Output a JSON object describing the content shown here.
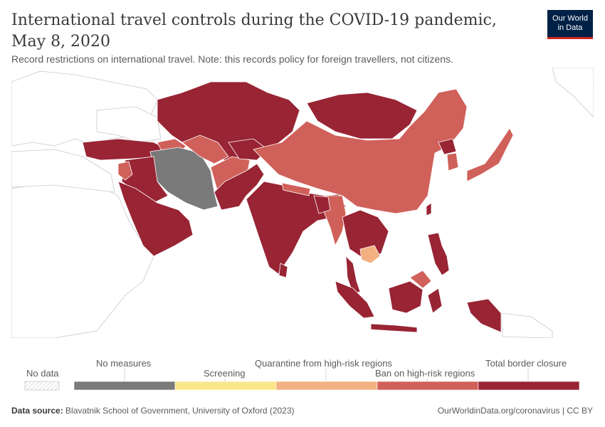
{
  "header": {
    "title": "International travel controls during the COVID-19 pandemic, May 8, 2020",
    "subtitle": "Record restrictions on international travel. Note: this records policy for foreign travellers, not citizens."
  },
  "logo": {
    "line1": "Our World",
    "line2": "in Data"
  },
  "colors": {
    "no_data": "#ffffff",
    "no_measures": "#7a7a7a",
    "screening": "#fbe78a",
    "quarantine": "#f3b081",
    "ban_high_risk": "#d0605a",
    "total_closure": "#982434",
    "water": "#ffffff",
    "border": "#c8c8c8"
  },
  "legend": {
    "no_data_label": "No data",
    "categories": [
      {
        "label": "No measures",
        "color_key": "no_measures"
      },
      {
        "label": "Screening",
        "color_key": "screening"
      },
      {
        "label": "Quarantine from high-risk regions",
        "color_key": "quarantine"
      },
      {
        "label": "Ban on high-risk regions",
        "color_key": "ban_high_risk"
      },
      {
        "label": "Total border closure",
        "color_key": "total_closure"
      }
    ]
  },
  "footer": {
    "source_label": "Data source:",
    "source_text": "Blavatnik School of Government, University of Oxford (2023)",
    "credit": "OurWorldinData.org/coronavirus | CC BY"
  }
}
